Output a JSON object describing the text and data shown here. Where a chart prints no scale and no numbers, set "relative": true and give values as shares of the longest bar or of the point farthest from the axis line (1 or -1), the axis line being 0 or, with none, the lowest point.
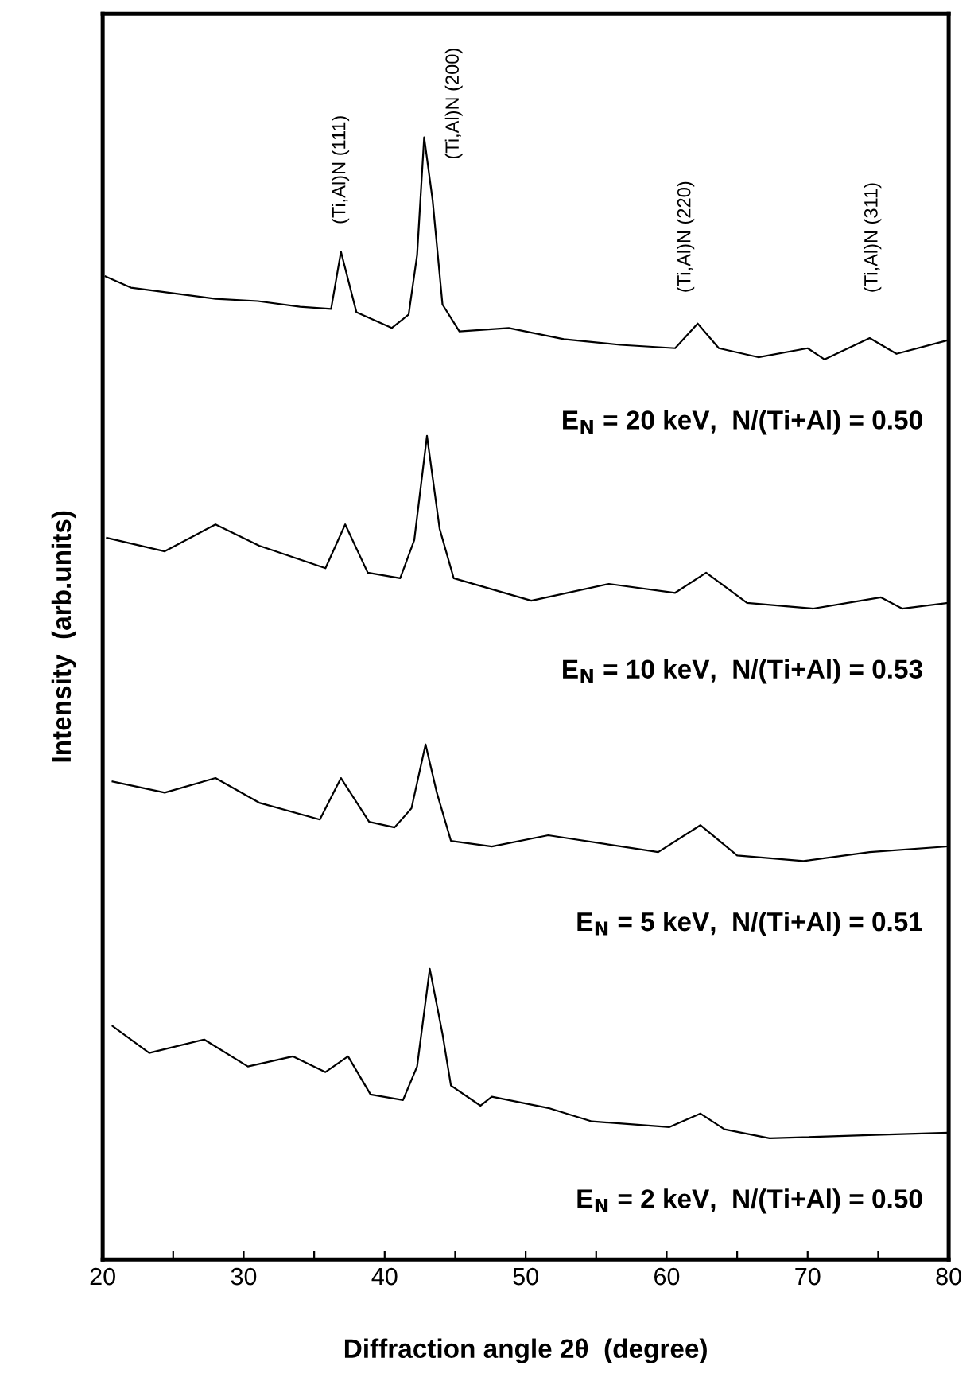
{
  "chart_data": {
    "type": "line",
    "relative": true,
    "xlabel": "Diffraction angle 2θ  (degree)",
    "ylabel": "Intensity  (arb.units)",
    "xlim": [
      20,
      80
    ],
    "xticks": [
      20,
      {
        "value": 25,
        "label": null
      },
      30,
      {
        "value": 35,
        "label": null
      },
      40,
      {
        "value": 45,
        "label": null
      },
      50,
      {
        "value": 55,
        "label": null
      },
      60,
      {
        "value": 65,
        "label": null
      },
      70,
      {
        "value": 75,
        "label": null
      },
      80
    ],
    "tick_labels": "x",
    "grid": false,
    "legend": false,
    "marker": "none",
    "line_style": "solid",
    "annotations": [
      "(Ti,Al)N (111)",
      "(Ti,Al)N (200)",
      "(Ti,Al)N (220)",
      "(Ti,Al)N (311)"
    ],
    "series": [
      {
        "name": "E$_{N}$ = 20 keV,  N/(Ti+Al) = 0.50",
        "color": "#000000",
        "x": [
          20.2,
          22,
          25,
          28,
          31,
          34,
          36.2,
          36.9,
          38.0,
          40.5,
          41.7,
          42.3,
          42.8,
          43.4,
          44.1,
          45.3,
          48.8,
          52.7,
          56.7,
          60.6,
          62.2,
          63.7,
          66.5,
          70.0,
          71.2,
          74.4,
          76.3,
          79.9
        ],
        "values": [
          0.876,
          0.866,
          0.861,
          0.856,
          0.854,
          0.849,
          0.847,
          0.898,
          0.844,
          0.83,
          0.842,
          0.895,
          1.0,
          0.944,
          0.851,
          0.827,
          0.83,
          0.82,
          0.815,
          0.812,
          0.834,
          0.812,
          0.804,
          0.812,
          0.802,
          0.821,
          0.807,
          0.819
        ]
      },
      {
        "name": "E$_{N}$ = 10 keV,  N/(Ti+Al) = 0.53",
        "color": "#000000",
        "x": [
          20.3,
          24.4,
          28.0,
          31.1,
          35.8,
          37.2,
          38.8,
          41.1,
          42.1,
          43.0,
          43.9,
          44.9,
          50.4,
          55.9,
          60.6,
          62.8,
          65.7,
          70.4,
          75.2,
          76.7,
          79.9
        ],
        "values": [
          0.643,
          0.631,
          0.655,
          0.636,
          0.616,
          0.655,
          0.612,
          0.607,
          0.641,
          0.734,
          0.651,
          0.607,
          0.587,
          0.602,
          0.594,
          0.612,
          0.585,
          0.58,
          0.59,
          0.58,
          0.585
        ]
      },
      {
        "name": "E$_{N}$ = 5 keV,  N/(Ti+Al) = 0.51",
        "color": "#000000",
        "x": [
          20.7,
          24.4,
          28.0,
          31.1,
          35.4,
          36.9,
          38.9,
          40.7,
          41.9,
          42.9,
          43.7,
          44.7,
          47.6,
          51.6,
          59.4,
          62.4,
          65.0,
          69.7,
          74.4,
          79.9
        ],
        "values": [
          0.426,
          0.416,
          0.429,
          0.407,
          0.392,
          0.429,
          0.39,
          0.385,
          0.402,
          0.459,
          0.416,
          0.373,
          0.368,
          0.378,
          0.363,
          0.387,
          0.36,
          0.355,
          0.363,
          0.368
        ]
      },
      {
        "name": "E$_{N}$ = 2 keV,  N/(Ti+Al) = 0.50",
        "color": "#000000",
        "x": [
          20.7,
          23.3,
          27.2,
          30.3,
          33.5,
          35.8,
          37.4,
          39.0,
          41.3,
          42.3,
          43.2,
          44.1,
          44.7,
          46.8,
          47.6,
          51.6,
          54.7,
          60.2,
          62.4,
          64.1,
          67.3,
          74.8,
          79.9
        ],
        "values": [
          0.208,
          0.184,
          0.196,
          0.172,
          0.181,
          0.167,
          0.181,
          0.147,
          0.142,
          0.172,
          0.259,
          0.201,
          0.155,
          0.137,
          0.145,
          0.135,
          0.123,
          0.118,
          0.13,
          0.116,
          0.108,
          0.111,
          0.113
        ]
      }
    ]
  }
}
